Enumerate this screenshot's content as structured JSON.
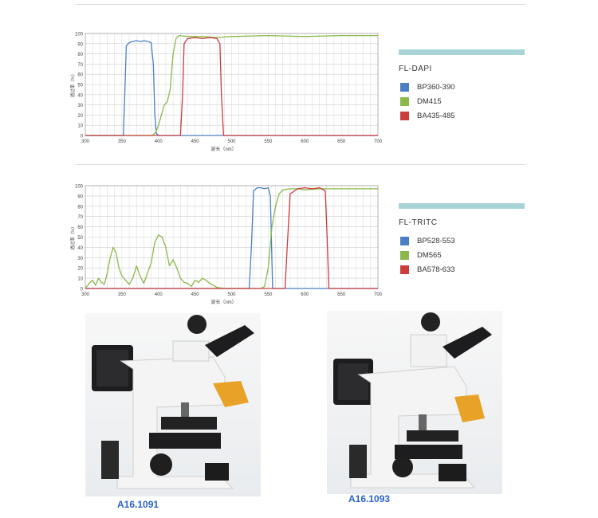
{
  "chart_data": [
    {
      "type": "line",
      "title": "",
      "xlabel": "波长（nm）",
      "ylabel": "透过率（%）",
      "xlim": [
        300,
        700
      ],
      "ylim": [
        0,
        100
      ],
      "x_ticks": [
        300,
        350,
        400,
        450,
        500,
        550,
        600,
        650,
        700
      ],
      "y_ticks": [
        0,
        10,
        20,
        30,
        40,
        50,
        60,
        70,
        80,
        90,
        100
      ],
      "grid": true,
      "legend_title": "FL-DAPI",
      "legend_position": "right",
      "series": [
        {
          "name": "BP360-390",
          "color": "#4a7fc4",
          "x": [
            300,
            352,
            354,
            356,
            360,
            364,
            370,
            376,
            380,
            386,
            390,
            393,
            395,
            397,
            400,
            700
          ],
          "y": [
            0,
            0,
            40,
            88,
            91,
            92,
            93,
            92,
            93,
            92,
            91,
            70,
            20,
            2,
            0,
            0
          ]
        },
        {
          "name": "DM415",
          "color": "#8ab84a",
          "x": [
            300,
            392,
            396,
            400,
            404,
            408,
            412,
            416,
            420,
            424,
            428,
            440,
            460,
            480,
            500,
            550,
            600,
            650,
            700
          ],
          "y": [
            0,
            0,
            3,
            10,
            20,
            30,
            33,
            45,
            80,
            95,
            98,
            97,
            97,
            96,
            97,
            98,
            97,
            98,
            98
          ]
        },
        {
          "name": "BA435-485",
          "color": "#cc3c3c",
          "x": [
            300,
            430,
            433,
            435,
            440,
            450,
            460,
            470,
            480,
            484,
            486,
            489,
            700
          ],
          "y": [
            0,
            0,
            40,
            90,
            95,
            96,
            95,
            96,
            95,
            90,
            40,
            0,
            0
          ]
        }
      ]
    },
    {
      "type": "line",
      "title": "",
      "xlabel": "波长（nm）",
      "ylabel": "透过率（%）",
      "xlim": [
        300,
        700
      ],
      "ylim": [
        0,
        100
      ],
      "x_ticks": [
        300,
        350,
        400,
        450,
        500,
        550,
        600,
        650,
        700
      ],
      "y_ticks": [
        0,
        10,
        20,
        30,
        40,
        50,
        60,
        70,
        80,
        90,
        100
      ],
      "grid": true,
      "legend_title": "FL-TRITC",
      "legend_position": "right",
      "series": [
        {
          "name": "BP528-553",
          "color": "#4a7fc4",
          "x": [
            300,
            524,
            527,
            530,
            535,
            540,
            545,
            550,
            553,
            556,
            700
          ],
          "y": [
            0,
            0,
            40,
            95,
            98,
            98,
            97,
            98,
            90,
            0,
            0
          ]
        },
        {
          "name": "DM565",
          "color": "#8ab84a",
          "x": [
            300,
            305,
            310,
            314,
            318,
            322,
            326,
            330,
            334,
            338,
            342,
            346,
            350,
            355,
            360,
            365,
            370,
            375,
            380,
            385,
            390,
            395,
            400,
            405,
            410,
            415,
            420,
            425,
            430,
            435,
            440,
            445,
            450,
            455,
            460,
            465,
            470,
            475,
            480,
            490,
            500,
            510,
            520,
            530,
            540,
            545,
            550,
            555,
            560,
            565,
            570,
            580,
            590,
            600,
            620,
            650,
            700
          ],
          "y": [
            0,
            5,
            8,
            3,
            10,
            6,
            4,
            15,
            30,
            40,
            35,
            20,
            12,
            8,
            4,
            10,
            22,
            12,
            5,
            15,
            25,
            45,
            52,
            50,
            40,
            22,
            28,
            20,
            10,
            6,
            5,
            2,
            8,
            6,
            10,
            8,
            5,
            3,
            1,
            0,
            0,
            0,
            0,
            0,
            0,
            2,
            20,
            60,
            80,
            92,
            96,
            97,
            97,
            96,
            97,
            97,
            97
          ]
        },
        {
          "name": "BA578-633",
          "color": "#cc3c3c",
          "x": [
            300,
            573,
            576,
            580,
            590,
            600,
            610,
            620,
            628,
            630,
            633,
            700
          ],
          "y": [
            0,
            0,
            40,
            92,
            97,
            98,
            97,
            98,
            95,
            60,
            0,
            0
          ]
        }
      ]
    }
  ],
  "photos": [
    {
      "caption": "A16.1091"
    },
    {
      "caption": "A16.1093"
    }
  ]
}
